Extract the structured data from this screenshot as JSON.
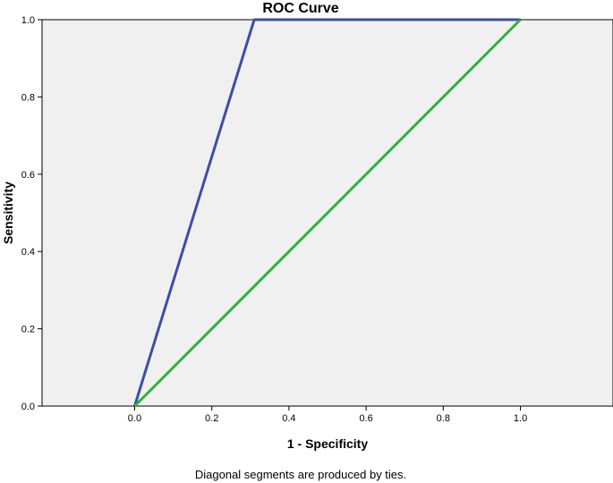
{
  "chart_data": {
    "type": "line",
    "title": "ROC Curve",
    "xlabel": "1 - Specificity",
    "ylabel": "Sensitivity",
    "footnote": "Diagonal segments are produced by ties.",
    "xlim": [
      -0.24,
      1.24
    ],
    "ylim": [
      0,
      1
    ],
    "xticks": [
      0.0,
      0.2,
      0.4,
      0.6,
      0.8,
      1.0
    ],
    "yticks": [
      0.0,
      0.2,
      0.4,
      0.6,
      0.8,
      1.0
    ],
    "xtick_labels": [
      "0.0",
      "0.2",
      "0.4",
      "0.6",
      "0.8",
      "1.0"
    ],
    "ytick_labels": [
      "0.0",
      "0.2",
      "0.4",
      "0.6",
      "0.8",
      "1.0"
    ],
    "grid": false,
    "plot_background": "#f0f0f0",
    "series": [
      {
        "color": "#3c4fa3",
        "x": [
          0.0,
          0.31,
          1.0
        ],
        "y": [
          0.0,
          1.0,
          1.0
        ]
      },
      {
        "color": "#2db33a",
        "x": [
          0.0,
          1.0
        ],
        "y": [
          0.0,
          1.0
        ]
      }
    ]
  }
}
